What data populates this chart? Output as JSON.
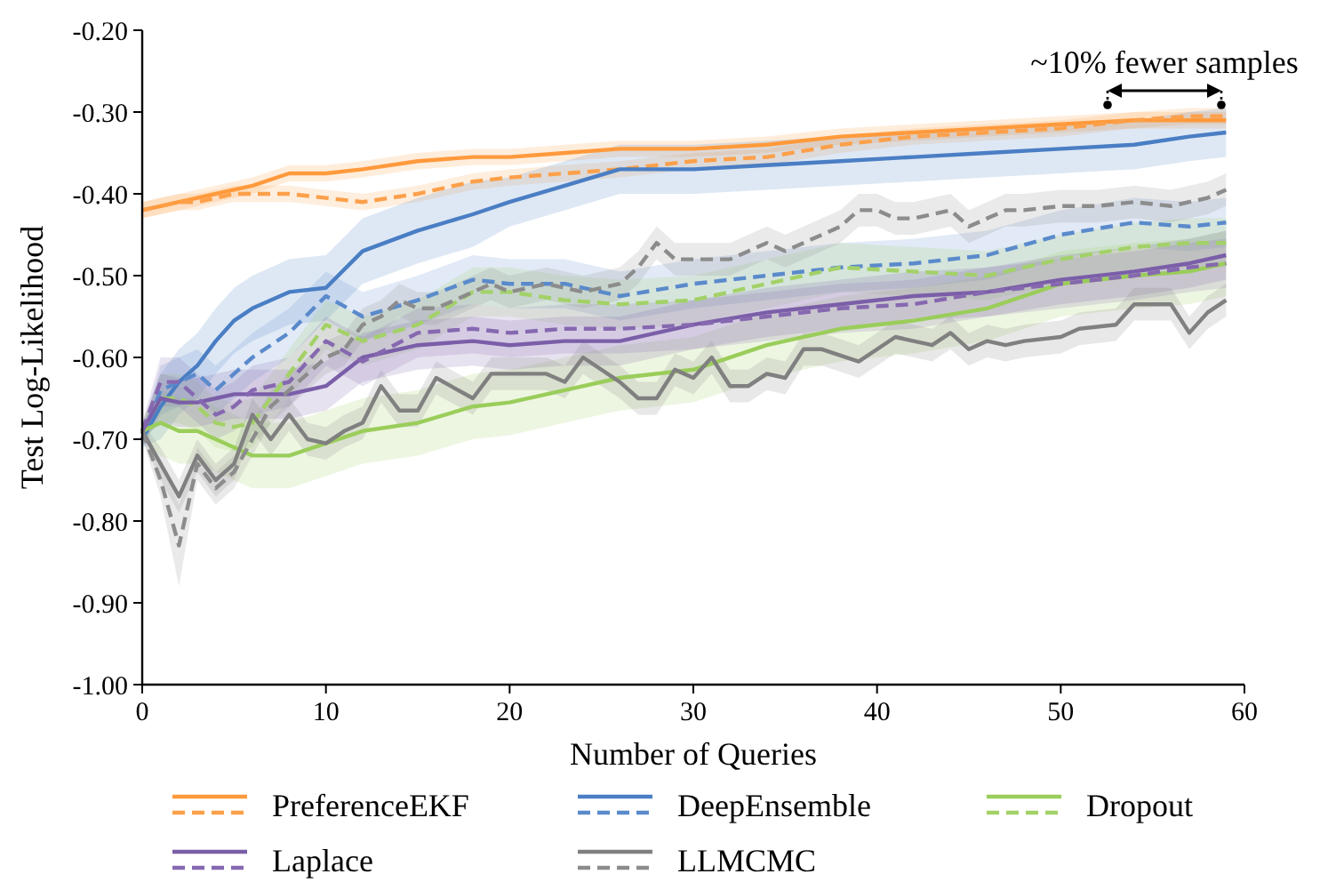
{
  "chart_data": {
    "type": "line",
    "xlabel": "Number of Queries",
    "ylabel": "Test Log-Likelihood",
    "xlim": [
      0,
      60
    ],
    "ylim": [
      -1,
      -0.2
    ],
    "xticks": [
      0,
      10,
      20,
      30,
      40,
      50,
      60
    ],
    "yticks": [
      {
        "value": -1,
        "label": "-1.00"
      },
      {
        "value": -0.9,
        "label": "-0.90"
      },
      {
        "value": -0.8,
        "label": "-0.80"
      },
      {
        "value": -0.7,
        "label": "-0.70"
      },
      {
        "value": -0.6,
        "label": "-0.60"
      },
      {
        "value": -0.5,
        "label": "-0.50"
      },
      {
        "value": -0.4,
        "label": "-0.40"
      },
      {
        "value": -0.3,
        "label": "-0.30"
      },
      {
        "value": -0.2,
        "label": "-0.20"
      }
    ],
    "legend": "bottom",
    "annotations": [
      "~10% fewer samples"
    ],
    "x": [
      0,
      1,
      2,
      3,
      4,
      5,
      6,
      8,
      10,
      12,
      15,
      18,
      20,
      23,
      26,
      30,
      34,
      38,
      42,
      46,
      50,
      54,
      57,
      59
    ],
    "series": [
      {
        "name": "PreferenceEKF",
        "color": "#ff9a3c",
        "line_style": "solid",
        "values": [
          -0.42,
          -0.415,
          -0.41,
          -0.405,
          -0.4,
          -0.395,
          -0.39,
          -0.375,
          -0.375,
          -0.37,
          -0.36,
          -0.355,
          -0.355,
          -0.35,
          -0.345,
          -0.345,
          -0.34,
          -0.33,
          -0.325,
          -0.32,
          -0.315,
          -0.31,
          -0.31,
          -0.31
        ],
        "lower": [
          -0.43,
          -0.425,
          -0.42,
          -0.415,
          -0.41,
          -0.405,
          -0.4,
          -0.385,
          -0.385,
          -0.38,
          -0.37,
          -0.365,
          -0.365,
          -0.36,
          -0.355,
          -0.355,
          -0.35,
          -0.34,
          -0.335,
          -0.33,
          -0.325,
          -0.32,
          -0.32,
          -0.32
        ],
        "upper": [
          -0.41,
          -0.405,
          -0.4,
          -0.395,
          -0.39,
          -0.385,
          -0.38,
          -0.365,
          -0.365,
          -0.36,
          -0.35,
          -0.345,
          -0.345,
          -0.34,
          -0.335,
          -0.335,
          -0.33,
          -0.32,
          -0.315,
          -0.31,
          -0.305,
          -0.3,
          -0.3,
          -0.3
        ]
      },
      {
        "color": "#fca04a",
        "line_style": "dashed",
        "values": [
          -0.42,
          -0.415,
          -0.41,
          -0.41,
          -0.405,
          -0.4,
          -0.4,
          -0.4,
          -0.405,
          -0.41,
          -0.4,
          -0.385,
          -0.38,
          -0.375,
          -0.37,
          -0.36,
          -0.355,
          -0.34,
          -0.33,
          -0.325,
          -0.32,
          -0.31,
          -0.305,
          -0.305
        ],
        "lower": [
          -0.43,
          -0.425,
          -0.42,
          -0.42,
          -0.415,
          -0.41,
          -0.41,
          -0.41,
          -0.415,
          -0.42,
          -0.41,
          -0.395,
          -0.39,
          -0.385,
          -0.38,
          -0.37,
          -0.365,
          -0.35,
          -0.34,
          -0.335,
          -0.33,
          -0.32,
          -0.315,
          -0.315
        ],
        "upper": [
          -0.41,
          -0.405,
          -0.4,
          -0.4,
          -0.395,
          -0.39,
          -0.39,
          -0.39,
          -0.395,
          -0.4,
          -0.39,
          -0.375,
          -0.37,
          -0.365,
          -0.36,
          -0.35,
          -0.345,
          -0.33,
          -0.32,
          -0.315,
          -0.31,
          -0.3,
          -0.295,
          -0.295
        ]
      },
      {
        "name": "DeepEnsemble",
        "color": "#4a7ec4",
        "line_style": "solid",
        "values": [
          -0.7,
          -0.66,
          -0.63,
          -0.61,
          -0.58,
          -0.555,
          -0.54,
          -0.52,
          -0.515,
          -0.47,
          -0.445,
          -0.425,
          -0.41,
          -0.39,
          -0.37,
          -0.37,
          -0.365,
          -0.36,
          -0.355,
          -0.35,
          -0.345,
          -0.34,
          -0.33,
          -0.325
        ],
        "lower": [
          -0.71,
          -0.7,
          -0.67,
          -0.65,
          -0.62,
          -0.595,
          -0.58,
          -0.56,
          -0.555,
          -0.51,
          -0.485,
          -0.465,
          -0.44,
          -0.42,
          -0.4,
          -0.4,
          -0.395,
          -0.39,
          -0.385,
          -0.38,
          -0.375,
          -0.37,
          -0.36,
          -0.355
        ],
        "upper": [
          -0.69,
          -0.62,
          -0.59,
          -0.57,
          -0.54,
          -0.515,
          -0.5,
          -0.48,
          -0.475,
          -0.43,
          -0.405,
          -0.385,
          -0.38,
          -0.36,
          -0.34,
          -0.34,
          -0.335,
          -0.33,
          -0.325,
          -0.32,
          -0.315,
          -0.31,
          -0.3,
          -0.295
        ]
      },
      {
        "color": "#5a8acb",
        "line_style": "dashed",
        "values": [
          -0.7,
          -0.64,
          -0.63,
          -0.62,
          -0.64,
          -0.62,
          -0.6,
          -0.57,
          -0.525,
          -0.55,
          -0.53,
          -0.505,
          -0.51,
          -0.51,
          -0.525,
          -0.51,
          -0.5,
          -0.49,
          -0.485,
          -0.475,
          -0.45,
          -0.435,
          -0.44,
          -0.435
        ],
        "lower": [
          -0.71,
          -0.67,
          -0.66,
          -0.65,
          -0.67,
          -0.65,
          -0.63,
          -0.6,
          -0.555,
          -0.58,
          -0.56,
          -0.535,
          -0.54,
          -0.54,
          -0.555,
          -0.54,
          -0.53,
          -0.52,
          -0.515,
          -0.505,
          -0.48,
          -0.465,
          -0.47,
          -0.465
        ],
        "upper": [
          -0.69,
          -0.61,
          -0.6,
          -0.59,
          -0.61,
          -0.59,
          -0.57,
          -0.54,
          -0.495,
          -0.52,
          -0.5,
          -0.475,
          -0.48,
          -0.48,
          -0.495,
          -0.48,
          -0.47,
          -0.46,
          -0.455,
          -0.445,
          -0.42,
          -0.405,
          -0.41,
          -0.405
        ]
      },
      {
        "name": "Dropout",
        "color": "#9acd5a",
        "line_style": "solid",
        "values": [
          -0.69,
          -0.68,
          -0.69,
          -0.69,
          -0.7,
          -0.71,
          -0.72,
          -0.72,
          -0.705,
          -0.69,
          -0.68,
          -0.66,
          -0.655,
          -0.64,
          -0.625,
          -0.615,
          -0.585,
          -0.565,
          -0.555,
          -0.54,
          -0.51,
          -0.5,
          -0.495,
          -0.485
        ],
        "lower": [
          -0.7,
          -0.72,
          -0.73,
          -0.73,
          -0.74,
          -0.75,
          -0.76,
          -0.76,
          -0.745,
          -0.73,
          -0.72,
          -0.7,
          -0.695,
          -0.68,
          -0.665,
          -0.655,
          -0.625,
          -0.605,
          -0.595,
          -0.58,
          -0.55,
          -0.54,
          -0.535,
          -0.525
        ],
        "upper": [
          -0.68,
          -0.64,
          -0.65,
          -0.65,
          -0.66,
          -0.67,
          -0.68,
          -0.68,
          -0.665,
          -0.65,
          -0.64,
          -0.62,
          -0.615,
          -0.6,
          -0.585,
          -0.575,
          -0.545,
          -0.525,
          -0.515,
          -0.5,
          -0.47,
          -0.46,
          -0.455,
          -0.445
        ]
      },
      {
        "color": "#a3d168",
        "line_style": "dashed",
        "values": [
          -0.69,
          -0.65,
          -0.65,
          -0.66,
          -0.68,
          -0.685,
          -0.68,
          -0.62,
          -0.56,
          -0.58,
          -0.56,
          -0.52,
          -0.52,
          -0.53,
          -0.535,
          -0.53,
          -0.51,
          -0.49,
          -0.495,
          -0.5,
          -0.48,
          -0.465,
          -0.46,
          -0.46
        ],
        "lower": [
          -0.7,
          -0.68,
          -0.68,
          -0.69,
          -0.71,
          -0.715,
          -0.71,
          -0.65,
          -0.59,
          -0.61,
          -0.59,
          -0.55,
          -0.55,
          -0.56,
          -0.565,
          -0.56,
          -0.54,
          -0.52,
          -0.525,
          -0.53,
          -0.51,
          -0.495,
          -0.49,
          -0.49
        ],
        "upper": [
          -0.68,
          -0.62,
          -0.62,
          -0.63,
          -0.65,
          -0.655,
          -0.65,
          -0.59,
          -0.53,
          -0.55,
          -0.53,
          -0.49,
          -0.49,
          -0.5,
          -0.505,
          -0.5,
          -0.48,
          -0.46,
          -0.465,
          -0.47,
          -0.45,
          -0.435,
          -0.43,
          -0.43
        ]
      },
      {
        "name": "Laplace",
        "color": "#7b5ea8",
        "line_style": "solid",
        "values": [
          -0.69,
          -0.65,
          -0.655,
          -0.655,
          -0.65,
          -0.645,
          -0.645,
          -0.645,
          -0.635,
          -0.6,
          -0.585,
          -0.58,
          -0.585,
          -0.58,
          -0.58,
          -0.56,
          -0.545,
          -0.535,
          -0.525,
          -0.52,
          -0.505,
          -0.495,
          -0.485,
          -0.475
        ],
        "lower": [
          -0.7,
          -0.68,
          -0.685,
          -0.685,
          -0.68,
          -0.675,
          -0.675,
          -0.675,
          -0.665,
          -0.63,
          -0.615,
          -0.61,
          -0.615,
          -0.61,
          -0.61,
          -0.59,
          -0.575,
          -0.565,
          -0.555,
          -0.55,
          -0.535,
          -0.525,
          -0.515,
          -0.505
        ],
        "upper": [
          -0.68,
          -0.62,
          -0.625,
          -0.625,
          -0.62,
          -0.615,
          -0.615,
          -0.615,
          -0.605,
          -0.57,
          -0.555,
          -0.55,
          -0.555,
          -0.55,
          -0.55,
          -0.53,
          -0.515,
          -0.505,
          -0.495,
          -0.49,
          -0.475,
          -0.465,
          -0.455,
          -0.445
        ]
      },
      {
        "color": "#8668b0",
        "line_style": "dashed",
        "values": [
          -0.69,
          -0.63,
          -0.63,
          -0.65,
          -0.67,
          -0.66,
          -0.64,
          -0.63,
          -0.58,
          -0.605,
          -0.57,
          -0.565,
          -0.57,
          -0.565,
          -0.565,
          -0.56,
          -0.55,
          -0.54,
          -0.535,
          -0.52,
          -0.51,
          -0.5,
          -0.49,
          -0.485
        ],
        "lower": [
          -0.7,
          -0.66,
          -0.66,
          -0.68,
          -0.7,
          -0.69,
          -0.67,
          -0.66,
          -0.61,
          -0.635,
          -0.6,
          -0.595,
          -0.6,
          -0.595,
          -0.595,
          -0.59,
          -0.58,
          -0.57,
          -0.565,
          -0.55,
          -0.54,
          -0.53,
          -0.52,
          -0.515
        ],
        "upper": [
          -0.68,
          -0.6,
          -0.6,
          -0.62,
          -0.64,
          -0.63,
          -0.61,
          -0.6,
          -0.55,
          -0.575,
          -0.54,
          -0.535,
          -0.54,
          -0.535,
          -0.535,
          -0.53,
          -0.52,
          -0.51,
          -0.505,
          -0.49,
          -0.48,
          -0.47,
          -0.46,
          -0.455
        ]
      },
      {
        "name": "LLMCMC",
        "color": "#808080",
        "line_style": "solid",
        "x": [
          0,
          1,
          2,
          3,
          4,
          5,
          6,
          7,
          8,
          9,
          10,
          11,
          12,
          13,
          14,
          15,
          16,
          18,
          19,
          20,
          22,
          23,
          24,
          26,
          27,
          28,
          29,
          30,
          31,
          32,
          33,
          34,
          35,
          36,
          37,
          39,
          41,
          42,
          43,
          44,
          45,
          46,
          47,
          48,
          50,
          51,
          53,
          54,
          56,
          57,
          58,
          59
        ],
        "values": [
          -0.69,
          -0.73,
          -0.77,
          -0.72,
          -0.75,
          -0.73,
          -0.67,
          -0.7,
          -0.67,
          -0.7,
          -0.705,
          -0.69,
          -0.68,
          -0.635,
          -0.665,
          -0.665,
          -0.625,
          -0.65,
          -0.62,
          -0.62,
          -0.62,
          -0.63,
          -0.6,
          -0.63,
          -0.65,
          -0.65,
          -0.615,
          -0.625,
          -0.6,
          -0.635,
          -0.635,
          -0.62,
          -0.625,
          -0.59,
          -0.59,
          -0.605,
          -0.575,
          -0.58,
          -0.585,
          -0.57,
          -0.59,
          -0.58,
          -0.585,
          -0.58,
          -0.575,
          -0.565,
          -0.56,
          -0.535,
          -0.535,
          -0.57,
          -0.545,
          -0.53
        ],
        "lower": [
          -0.7,
          -0.75,
          -0.79,
          -0.74,
          -0.77,
          -0.75,
          -0.69,
          -0.72,
          -0.69,
          -0.72,
          -0.725,
          -0.71,
          -0.7,
          -0.655,
          -0.685,
          -0.685,
          -0.645,
          -0.67,
          -0.64,
          -0.64,
          -0.64,
          -0.65,
          -0.62,
          -0.65,
          -0.67,
          -0.67,
          -0.635,
          -0.645,
          -0.62,
          -0.655,
          -0.655,
          -0.64,
          -0.645,
          -0.61,
          -0.61,
          -0.625,
          -0.595,
          -0.6,
          -0.605,
          -0.59,
          -0.61,
          -0.6,
          -0.605,
          -0.6,
          -0.595,
          -0.585,
          -0.58,
          -0.555,
          -0.555,
          -0.59,
          -0.565,
          -0.55
        ],
        "upper": [
          -0.68,
          -0.71,
          -0.75,
          -0.7,
          -0.73,
          -0.71,
          -0.65,
          -0.68,
          -0.65,
          -0.68,
          -0.685,
          -0.67,
          -0.66,
          -0.615,
          -0.645,
          -0.645,
          -0.605,
          -0.63,
          -0.6,
          -0.6,
          -0.6,
          -0.61,
          -0.58,
          -0.61,
          -0.63,
          -0.63,
          -0.595,
          -0.605,
          -0.58,
          -0.615,
          -0.615,
          -0.6,
          -0.605,
          -0.57,
          -0.57,
          -0.585,
          -0.555,
          -0.56,
          -0.565,
          -0.55,
          -0.57,
          -0.56,
          -0.565,
          -0.56,
          -0.555,
          -0.545,
          -0.54,
          -0.515,
          -0.515,
          -0.55,
          -0.525,
          -0.51
        ]
      },
      {
        "color": "#8c8c8c",
        "line_style": "dashed",
        "x": [
          0,
          1,
          2,
          3,
          4,
          5,
          6,
          7,
          8,
          9,
          10,
          11,
          12,
          13,
          14,
          15,
          16,
          17,
          18,
          19,
          20,
          22,
          24,
          26,
          27,
          28,
          29,
          30,
          32,
          33,
          34,
          35,
          36,
          37,
          38,
          39,
          40,
          41,
          42,
          43,
          44,
          45,
          46,
          47,
          48,
          50,
          52,
          54,
          56,
          57,
          58,
          59
        ],
        "values": [
          -0.69,
          -0.75,
          -0.83,
          -0.73,
          -0.76,
          -0.74,
          -0.7,
          -0.66,
          -0.64,
          -0.62,
          -0.6,
          -0.59,
          -0.56,
          -0.55,
          -0.53,
          -0.54,
          -0.54,
          -0.53,
          -0.52,
          -0.51,
          -0.52,
          -0.51,
          -0.52,
          -0.51,
          -0.49,
          -0.46,
          -0.48,
          -0.48,
          -0.48,
          -0.47,
          -0.46,
          -0.47,
          -0.46,
          -0.45,
          -0.44,
          -0.42,
          -0.42,
          -0.43,
          -0.43,
          -0.425,
          -0.42,
          -0.44,
          -0.43,
          -0.42,
          -0.42,
          -0.415,
          -0.415,
          -0.41,
          -0.415,
          -0.41,
          -0.405,
          -0.395
        ],
        "lower": [
          -0.7,
          -0.77,
          -0.88,
          -0.75,
          -0.78,
          -0.76,
          -0.72,
          -0.68,
          -0.66,
          -0.64,
          -0.62,
          -0.61,
          -0.58,
          -0.57,
          -0.55,
          -0.56,
          -0.56,
          -0.55,
          -0.54,
          -0.53,
          -0.54,
          -0.53,
          -0.54,
          -0.53,
          -0.51,
          -0.48,
          -0.5,
          -0.5,
          -0.5,
          -0.49,
          -0.48,
          -0.49,
          -0.48,
          -0.47,
          -0.46,
          -0.44,
          -0.44,
          -0.45,
          -0.45,
          -0.445,
          -0.44,
          -0.46,
          -0.45,
          -0.44,
          -0.44,
          -0.435,
          -0.435,
          -0.43,
          -0.435,
          -0.43,
          -0.425,
          -0.415
        ],
        "upper": [
          -0.68,
          -0.73,
          -0.78,
          -0.71,
          -0.74,
          -0.72,
          -0.68,
          -0.64,
          -0.62,
          -0.6,
          -0.58,
          -0.57,
          -0.54,
          -0.53,
          -0.51,
          -0.52,
          -0.52,
          -0.51,
          -0.5,
          -0.49,
          -0.5,
          -0.49,
          -0.5,
          -0.49,
          -0.47,
          -0.44,
          -0.46,
          -0.46,
          -0.46,
          -0.45,
          -0.44,
          -0.45,
          -0.44,
          -0.43,
          -0.42,
          -0.4,
          -0.4,
          -0.41,
          -0.41,
          -0.405,
          -0.4,
          -0.42,
          -0.41,
          -0.4,
          -0.4,
          -0.395,
          -0.395,
          -0.39,
          -0.395,
          -0.39,
          -0.385,
          -0.375
        ]
      }
    ]
  }
}
